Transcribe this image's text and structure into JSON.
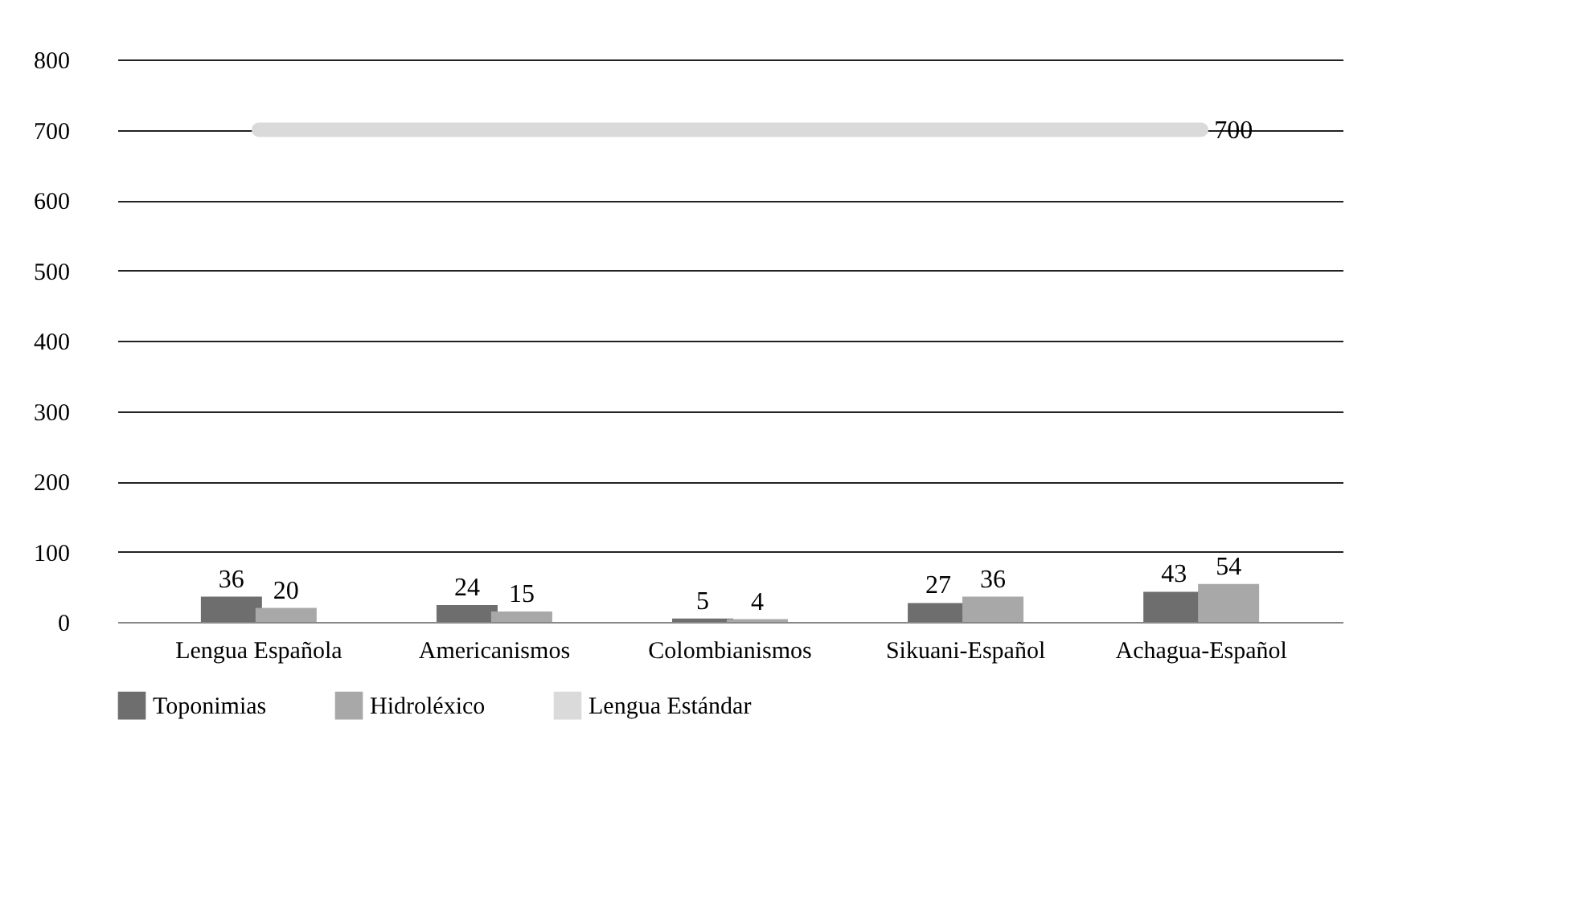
{
  "chart_data": {
    "type": "bar",
    "categories": [
      "Lengua Española",
      "Americanismos",
      "Colombianismos",
      "Sikuani-Español",
      "Achagua-Español"
    ],
    "series": [
      {
        "name": "Toponimias",
        "color": "#6e6e6e",
        "values": [
          36,
          24,
          5,
          27,
          43
        ],
        "value_labels": [
          "36",
          "24",
          "5",
          "27",
          "43"
        ]
      },
      {
        "name": "Hidroléxico",
        "color": "#a8a8a8",
        "values": [
          20,
          15,
          4,
          36,
          54
        ],
        "value_labels": [
          "20",
          "15",
          "4",
          "36",
          "54"
        ]
      },
      {
        "name": "Lengua Estándar",
        "type": "line",
        "color": "#dadada",
        "values": [
          700,
          700,
          700,
          700,
          700
        ],
        "value_labels": [
          null,
          null,
          null,
          null,
          "700"
        ]
      }
    ],
    "ylim": [
      0,
      800
    ],
    "yticks": [
      0,
      100,
      200,
      300,
      400,
      500,
      600,
      700,
      800
    ],
    "grid": "y",
    "legend": "bottom"
  }
}
